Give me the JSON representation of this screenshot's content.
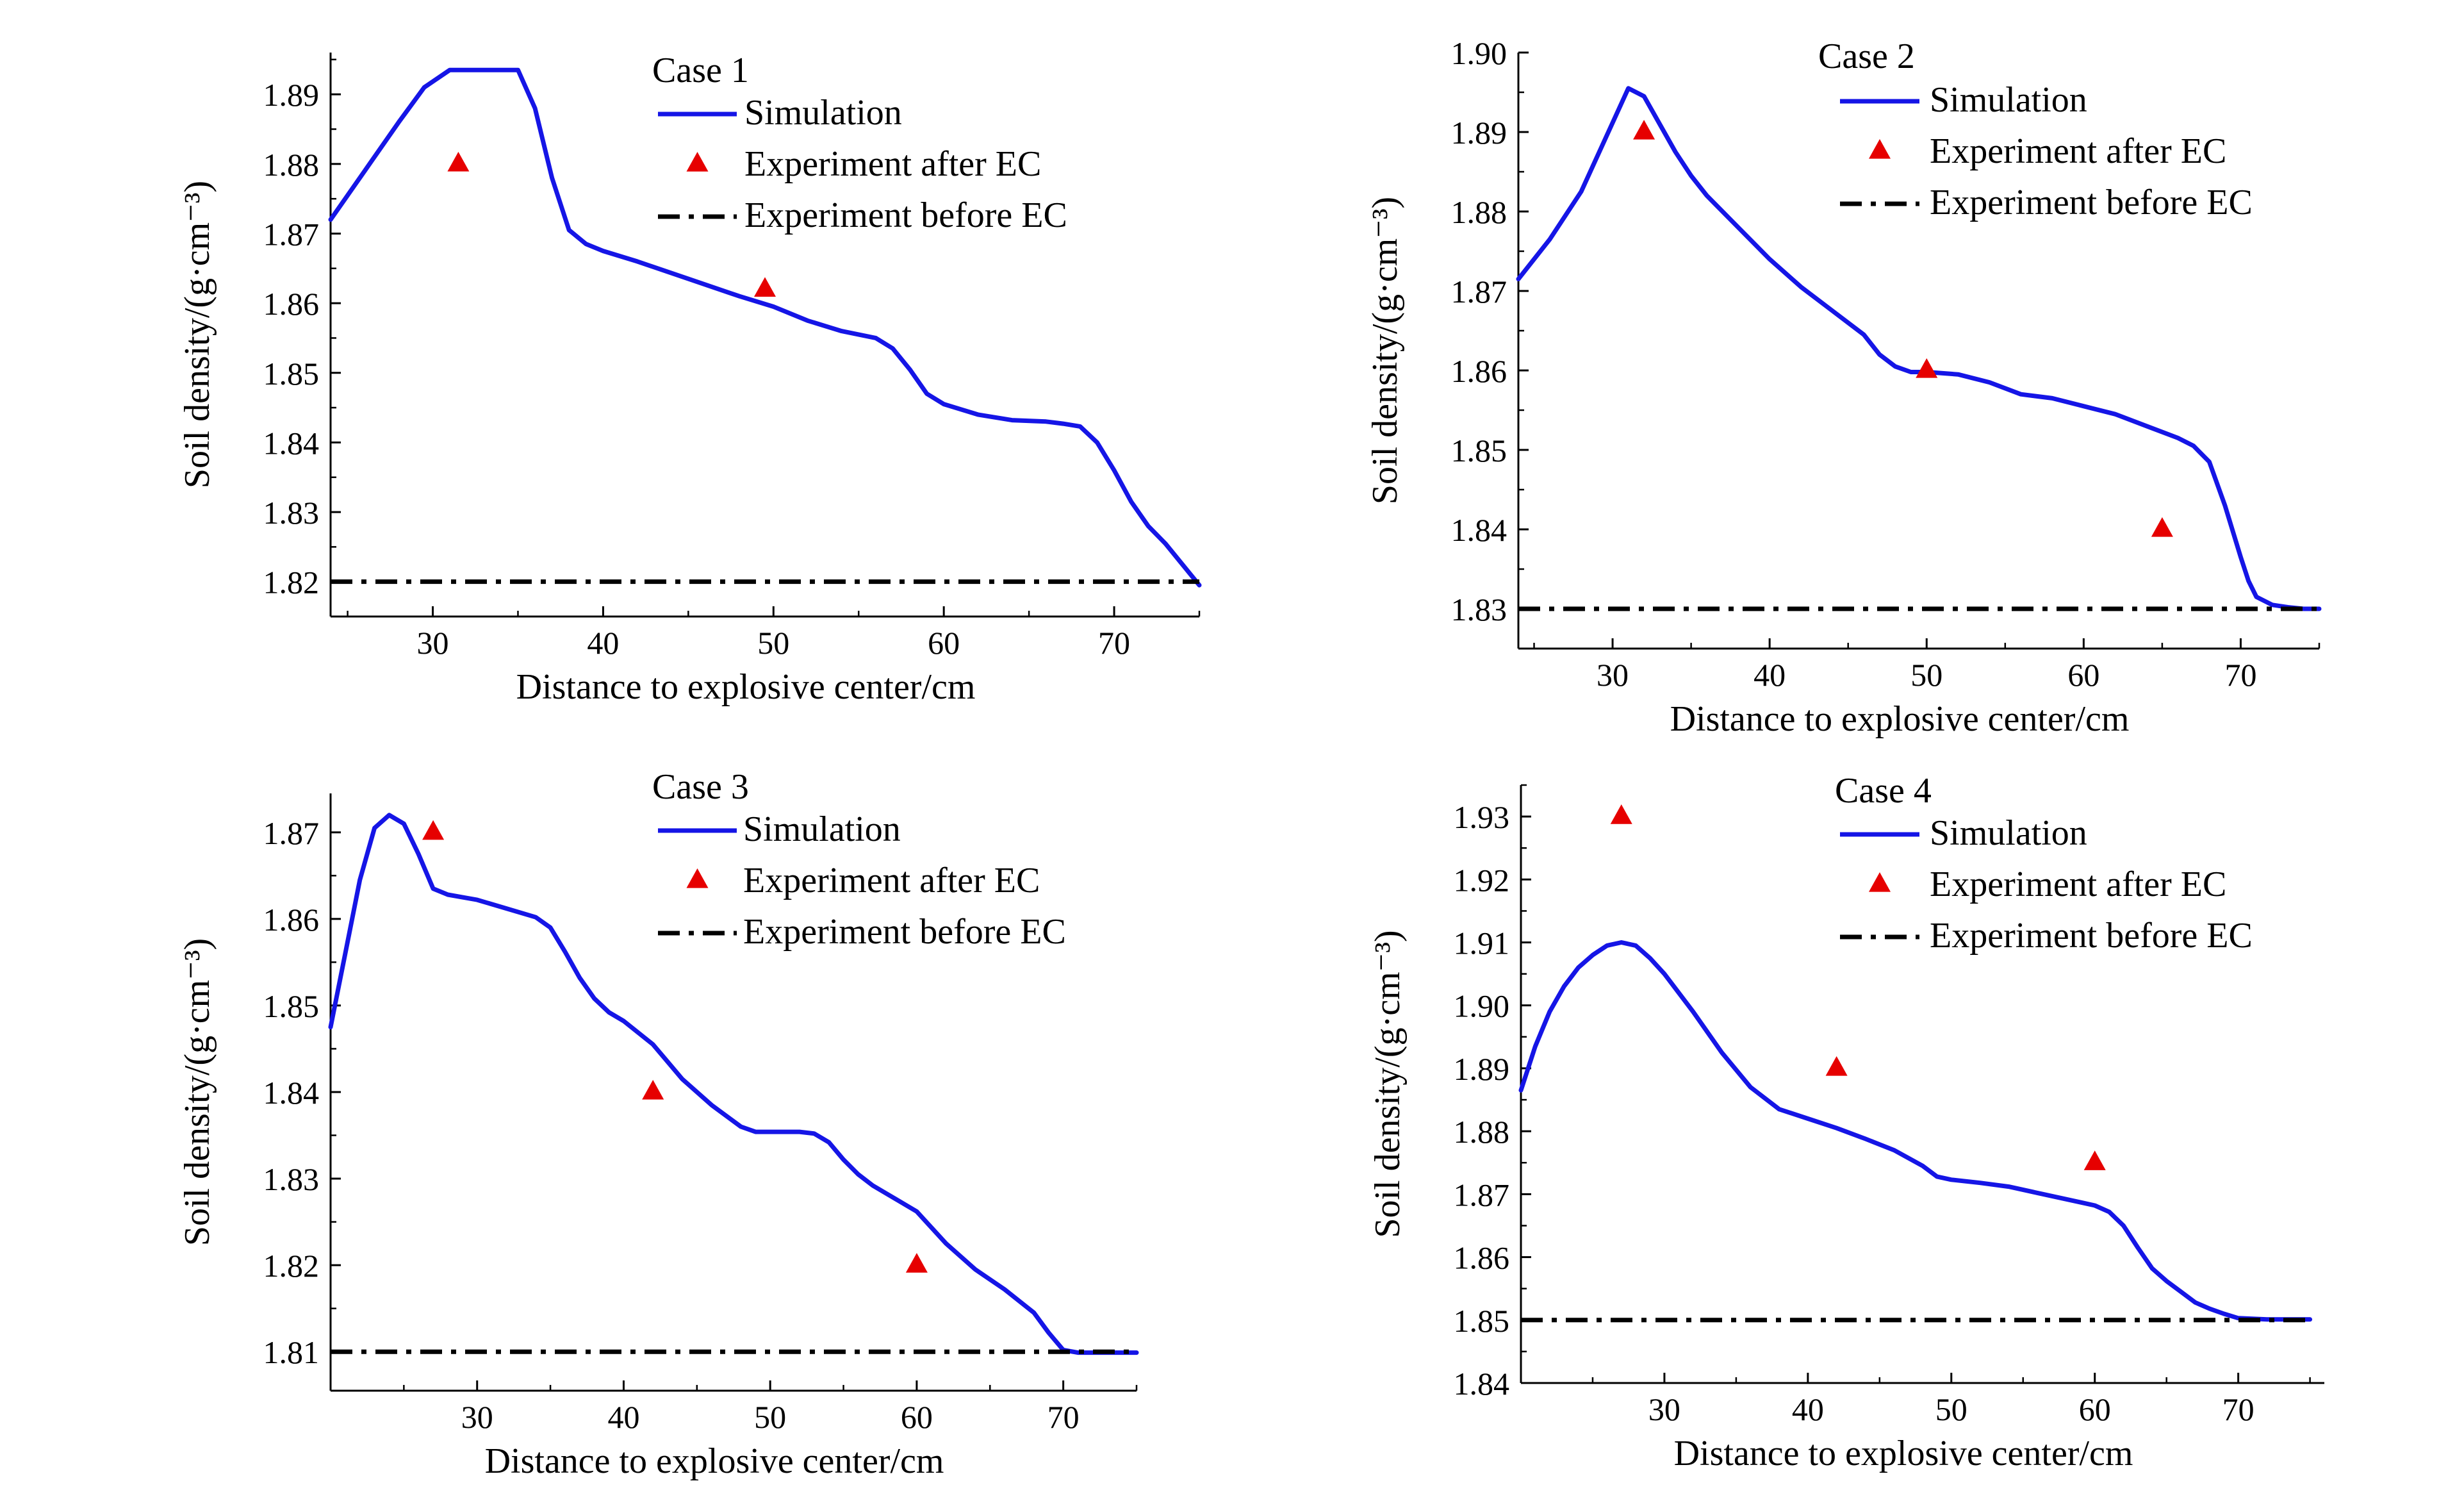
{
  "figure": {
    "background": "#ffffff"
  },
  "styles": {
    "simulation_color": "#1515e6",
    "experiment_after_color": "#e60000",
    "experiment_before_color": "#000000"
  },
  "chart_data": [
    {
      "type": "line",
      "title": "Case 1",
      "xlabel": "Distance to explosive center/cm",
      "ylabel": "Soil density/(g·cm⁻³)",
      "xlim": [
        24,
        75
      ],
      "ylim": [
        1.815,
        1.896
      ],
      "xticks": [
        30,
        40,
        50,
        60,
        70
      ],
      "yticks": [
        1.82,
        1.83,
        1.84,
        1.85,
        1.86,
        1.87,
        1.88,
        1.89
      ],
      "legend": {
        "position": "top-right",
        "entries": [
          "Simulation",
          "Experiment after EC",
          "Experiment before EC"
        ]
      },
      "series": [
        {
          "name": "Simulation",
          "style": "solid",
          "x": [
            24,
            26,
            28,
            29.5,
            31,
            32,
            33.5,
            35,
            36,
            37,
            38,
            39,
            40,
            42,
            45,
            48,
            50,
            52,
            54,
            56,
            57,
            58,
            59,
            60,
            62,
            64,
            66,
            67,
            68,
            69,
            70,
            71,
            72,
            73,
            74,
            75
          ],
          "y": [
            1.872,
            1.879,
            1.886,
            1.891,
            1.8935,
            1.8935,
            1.8935,
            1.8935,
            1.888,
            1.878,
            1.8705,
            1.8685,
            1.8675,
            1.866,
            1.8635,
            1.861,
            1.8595,
            1.8575,
            1.856,
            1.855,
            1.8535,
            1.8505,
            1.847,
            1.8455,
            1.844,
            1.8432,
            1.843,
            1.8427,
            1.8423,
            1.84,
            1.836,
            1.8315,
            1.828,
            1.8255,
            1.8225,
            1.8195
          ]
        },
        {
          "name": "Experiment after EC",
          "style": "markers",
          "x": [
            31.5,
            49.5
          ],
          "y": [
            1.88,
            1.862
          ]
        },
        {
          "name": "Experiment before EC",
          "style": "dashdot",
          "x": [
            24,
            75
          ],
          "y": [
            1.82,
            1.82
          ]
        }
      ]
    },
    {
      "type": "line",
      "title": "Case 2",
      "xlabel": "Distance to explosive center/cm",
      "ylabel": "Soil density/(g·cm⁻³)",
      "xlim": [
        24,
        75
      ],
      "ylim": [
        1.825,
        1.9
      ],
      "xticks": [
        30,
        40,
        50,
        60,
        70
      ],
      "yticks": [
        1.83,
        1.84,
        1.85,
        1.86,
        1.87,
        1.88,
        1.89,
        1.9
      ],
      "ytick_labels": [
        "1.83",
        "1.84",
        "1.85",
        "1.86",
        "1.87",
        "1.88",
        "1.89",
        "1.90"
      ],
      "legend": {
        "position": "top-right",
        "entries": [
          "Simulation",
          "Experiment after EC",
          "Experiment before EC"
        ]
      },
      "series": [
        {
          "name": "Simulation",
          "style": "solid",
          "x": [
            24,
            26,
            28,
            29.5,
            31,
            32,
            33,
            34,
            35,
            36,
            38,
            40,
            42,
            44,
            46,
            47,
            48,
            49,
            50,
            52,
            54,
            56,
            58,
            60,
            62,
            64,
            66,
            67,
            68,
            69,
            70,
            70.5,
            71,
            72,
            73,
            74,
            75
          ],
          "y": [
            1.8715,
            1.8765,
            1.8825,
            1.889,
            1.8955,
            1.8945,
            1.891,
            1.8875,
            1.8845,
            1.882,
            1.878,
            1.874,
            1.8705,
            1.8675,
            1.8645,
            1.862,
            1.8605,
            1.8598,
            1.8598,
            1.8595,
            1.8585,
            1.857,
            1.8565,
            1.8555,
            1.8545,
            1.853,
            1.8515,
            1.8505,
            1.8485,
            1.843,
            1.8365,
            1.8335,
            1.8315,
            1.8305,
            1.8302,
            1.83,
            1.83
          ]
        },
        {
          "name": "Experiment after EC",
          "style": "markers",
          "x": [
            32,
            50,
            65
          ],
          "y": [
            1.89,
            1.86,
            1.84
          ]
        },
        {
          "name": "Experiment before EC",
          "style": "dashdot",
          "x": [
            24,
            75
          ],
          "y": [
            1.83,
            1.83
          ]
        }
      ]
    },
    {
      "type": "line",
      "title": "Case 3",
      "xlabel": "Distance to explosive center/cm",
      "ylabel": "Soil density/(g·cm⁻³)",
      "xlim": [
        20,
        75
      ],
      "ylim": [
        1.8055,
        1.8745
      ],
      "xticks": [
        30,
        40,
        50,
        60,
        70
      ],
      "yticks": [
        1.81,
        1.82,
        1.83,
        1.84,
        1.85,
        1.86,
        1.87
      ],
      "legend": {
        "position": "top-right",
        "entries": [
          "Simulation",
          "Experiment after EC",
          "Experiment before EC"
        ]
      },
      "series": [
        {
          "name": "Simulation",
          "style": "solid",
          "x": [
            20,
            21,
            22,
            23,
            24,
            25,
            26,
            27,
            28,
            30,
            32,
            34,
            35,
            36,
            37,
            38,
            39,
            40,
            42,
            44,
            46,
            48,
            49,
            50,
            52,
            53,
            54,
            55,
            56,
            57,
            58,
            60,
            62,
            64,
            66,
            68,
            69,
            70,
            71,
            72,
            73,
            74,
            75
          ],
          "y": [
            1.8475,
            1.856,
            1.8645,
            1.8705,
            1.872,
            1.871,
            1.8675,
            1.8635,
            1.8628,
            1.8622,
            1.8612,
            1.8602,
            1.859,
            1.8562,
            1.8532,
            1.8508,
            1.8492,
            1.8482,
            1.8455,
            1.8415,
            1.8385,
            1.836,
            1.8354,
            1.8354,
            1.8354,
            1.8352,
            1.8342,
            1.8322,
            1.8305,
            1.8292,
            1.8282,
            1.8262,
            1.8225,
            1.8195,
            1.8172,
            1.8145,
            1.8122,
            1.8102,
            1.8099,
            1.8099,
            1.8099,
            1.8099,
            1.8099
          ]
        },
        {
          "name": "Experiment after EC",
          "style": "markers",
          "x": [
            27,
            42,
            60
          ],
          "y": [
            1.87,
            1.84,
            1.82
          ]
        },
        {
          "name": "Experiment before EC",
          "style": "dashdot",
          "x": [
            20,
            75
          ],
          "y": [
            1.81,
            1.81
          ]
        }
      ]
    },
    {
      "type": "line",
      "title": "Case 4",
      "xlabel": "Distance to explosive center/cm",
      "ylabel": "Soil density/(g·cm⁻³)",
      "xlim": [
        20,
        76
      ],
      "ylim": [
        1.84,
        1.935
      ],
      "xticks": [
        30,
        40,
        50,
        60,
        70
      ],
      "yticks": [
        1.84,
        1.85,
        1.86,
        1.87,
        1.88,
        1.89,
        1.9,
        1.91,
        1.92,
        1.93
      ],
      "ytick_labels": [
        "1.84",
        "1.85",
        "1.86",
        "1.87",
        "1.88",
        "1.89",
        "1.90",
        "1.91",
        "1.92",
        "1.93"
      ],
      "legend": {
        "position": "top-right",
        "entries": [
          "Simulation",
          "Experiment after EC",
          "Experiment before EC"
        ]
      },
      "series": [
        {
          "name": "Simulation",
          "style": "solid",
          "x": [
            20,
            21,
            22,
            23,
            24,
            25,
            26,
            27,
            28,
            29,
            30,
            32,
            34,
            36,
            38,
            40,
            42,
            44,
            46,
            48,
            49,
            50,
            52,
            54,
            56,
            58,
            59,
            60,
            61,
            62,
            63,
            64,
            65,
            66,
            67,
            68,
            69,
            70,
            72,
            74,
            75
          ],
          "y": [
            1.8865,
            1.8935,
            1.899,
            1.903,
            1.906,
            1.908,
            1.9095,
            1.91,
            1.9095,
            1.9075,
            1.905,
            1.899,
            1.8925,
            1.887,
            1.8835,
            1.882,
            1.8805,
            1.8788,
            1.877,
            1.8745,
            1.8728,
            1.8723,
            1.8718,
            1.8712,
            1.8702,
            1.8692,
            1.8687,
            1.8682,
            1.8672,
            1.865,
            1.8615,
            1.8582,
            1.8562,
            1.8545,
            1.8528,
            1.8518,
            1.851,
            1.8503,
            1.8501,
            1.8501,
            1.8501
          ]
        },
        {
          "name": "Experiment after EC",
          "style": "markers",
          "x": [
            27,
            42,
            60
          ],
          "y": [
            1.93,
            1.89,
            1.875
          ]
        },
        {
          "name": "Experiment before EC",
          "style": "dashdot",
          "x": [
            20,
            75
          ],
          "y": [
            1.85,
            1.85
          ]
        }
      ]
    }
  ]
}
